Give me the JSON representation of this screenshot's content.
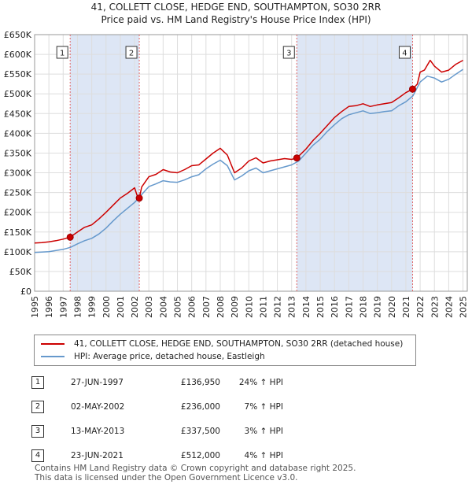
{
  "title_line1": "41, COLLETT CLOSE, HEDGE END, SOUTHAMPTON, SO30 2RR",
  "title_line2": "Price paid vs. HM Land Registry's House Price Index (HPI)",
  "chart_data": {
    "type": "line",
    "title": "41, COLLETT CLOSE, HEDGE END, SOUTHAMPTON, SO30 2RR — Price paid vs. HM Land Registry's House Price Index (HPI)",
    "xlim": [
      1995,
      2025.3
    ],
    "ylim": [
      0,
      650000
    ],
    "x_ticks": [
      1995,
      1996,
      1997,
      1998,
      1999,
      2000,
      2001,
      2002,
      2003,
      2004,
      2005,
      2006,
      2007,
      2008,
      2009,
      2010,
      2011,
      2012,
      2013,
      2014,
      2015,
      2016,
      2017,
      2018,
      2019,
      2020,
      2021,
      2022,
      2023,
      2024,
      2025
    ],
    "y_ticks": [
      0,
      50000,
      100000,
      150000,
      200000,
      250000,
      300000,
      350000,
      400000,
      450000,
      500000,
      550000,
      600000,
      650000
    ],
    "y_tick_labels": [
      "£0",
      "£50K",
      "£100K",
      "£150K",
      "£200K",
      "£250K",
      "£300K",
      "£350K",
      "£400K",
      "£450K",
      "£500K",
      "£550K",
      "£600K",
      "£650K"
    ],
    "colors": {
      "property": "#cc0000",
      "hpi": "#6699cc",
      "shade": "#dde6f5",
      "marker_line": "#e06666"
    },
    "series": [
      {
        "name": "41, COLLETT CLOSE, HEDGE END, SOUTHAMPTON, SO30 2RR (detached house)",
        "color": "#cc0000",
        "x": [
          1995,
          1995.5,
          1996,
          1996.5,
          1997,
          1997.49,
          1998,
          1998.5,
          1999,
          1999.5,
          2000,
          2000.5,
          2001,
          2001.5,
          2002,
          2002.2,
          2002.33,
          2002.5,
          2003,
          2003.5,
          2004,
          2004.5,
          2005,
          2005.5,
          2006,
          2006.5,
          2007,
          2007.5,
          2008,
          2008.5,
          2009,
          2009.5,
          2010,
          2010.5,
          2011,
          2011.5,
          2012,
          2012.5,
          2013,
          2013.36,
          2014,
          2014.5,
          2015,
          2015.5,
          2016,
          2016.5,
          2017,
          2017.5,
          2018,
          2018.5,
          2019,
          2019.5,
          2020,
          2020.5,
          2021,
          2021.47,
          2021.8,
          2022,
          2022.3,
          2022.7,
          2023,
          2023.5,
          2024,
          2024.5,
          2025
        ],
        "values": [
          122000,
          123000,
          125000,
          128000,
          132000,
          136950,
          150000,
          162000,
          168000,
          183000,
          200000,
          218000,
          236000,
          248000,
          262000,
          240000,
          236000,
          264000,
          290000,
          296000,
          308000,
          302000,
          300000,
          308000,
          318000,
          320000,
          335000,
          350000,
          362000,
          345000,
          300000,
          312000,
          330000,
          338000,
          325000,
          330000,
          333000,
          336000,
          334000,
          337500,
          360000,
          382000,
          400000,
          420000,
          440000,
          455000,
          468000,
          470000,
          475000,
          468000,
          472000,
          475000,
          478000,
          490000,
          503000,
          512000,
          525000,
          555000,
          560000,
          585000,
          570000,
          555000,
          560000,
          575000,
          585000
        ]
      },
      {
        "name": "HPI: Average price, detached house, Eastleigh",
        "color": "#6699cc",
        "x": [
          1995,
          1995.5,
          1996,
          1996.5,
          1997,
          1997.5,
          1998,
          1998.5,
          1999,
          1999.5,
          2000,
          2000.5,
          2001,
          2001.5,
          2002,
          2002.5,
          2003,
          2003.5,
          2004,
          2004.5,
          2005,
          2005.5,
          2006,
          2006.5,
          2007,
          2007.5,
          2008,
          2008.5,
          2009,
          2009.5,
          2010,
          2010.5,
          2011,
          2011.5,
          2012,
          2012.5,
          2013,
          2013.5,
          2014,
          2014.5,
          2015,
          2015.5,
          2016,
          2016.5,
          2017,
          2017.5,
          2018,
          2018.5,
          2019,
          2019.5,
          2020,
          2020.5,
          2021,
          2021.5,
          2022,
          2022.5,
          2023,
          2023.5,
          2024,
          2024.5,
          2025
        ],
        "values": [
          98000,
          99000,
          100000,
          103000,
          106000,
          111000,
          120000,
          128000,
          134000,
          145000,
          160000,
          178000,
          195000,
          210000,
          225000,
          245000,
          265000,
          272000,
          280000,
          277000,
          276000,
          282000,
          290000,
          295000,
          310000,
          322000,
          332000,
          318000,
          282000,
          292000,
          305000,
          312000,
          300000,
          305000,
          310000,
          315000,
          320000,
          330000,
          350000,
          370000,
          385000,
          405000,
          422000,
          437000,
          447000,
          452000,
          457000,
          450000,
          452000,
          455000,
          457000,
          470000,
          480000,
          495000,
          530000,
          545000,
          540000,
          530000,
          537000,
          550000,
          562000
        ]
      }
    ],
    "sales": [
      {
        "n": "1",
        "x": 1997.49,
        "price": 136950
      },
      {
        "n": "2",
        "x": 2002.33,
        "price": 236000
      },
      {
        "n": "3",
        "x": 2013.36,
        "price": 337500
      },
      {
        "n": "4",
        "x": 2021.47,
        "price": 512000
      }
    ],
    "shaded_ranges": [
      [
        1997.49,
        2002.33
      ],
      [
        2013.36,
        2021.47
      ]
    ]
  },
  "legend": {
    "property_label": "41, COLLETT CLOSE, HEDGE END, SOUTHAMPTON, SO30 2RR (detached house)",
    "hpi_label": "HPI: Average price, detached house, Eastleigh"
  },
  "transactions": [
    {
      "n": "1",
      "date": "27-JUN-1997",
      "price": "£136,950",
      "hpi": "24% ↑ HPI"
    },
    {
      "n": "2",
      "date": "02-MAY-2002",
      "price": "£236,000",
      "hpi": "7% ↑ HPI"
    },
    {
      "n": "3",
      "date": "13-MAY-2013",
      "price": "£337,500",
      "hpi": "3% ↑ HPI"
    },
    {
      "n": "4",
      "date": "23-JUN-2021",
      "price": "£512,000",
      "hpi": "4% ↑ HPI"
    }
  ],
  "footer_line1": "Contains HM Land Registry data © Crown copyright and database right 2025.",
  "footer_line2": "This data is licensed under the Open Government Licence v3.0."
}
